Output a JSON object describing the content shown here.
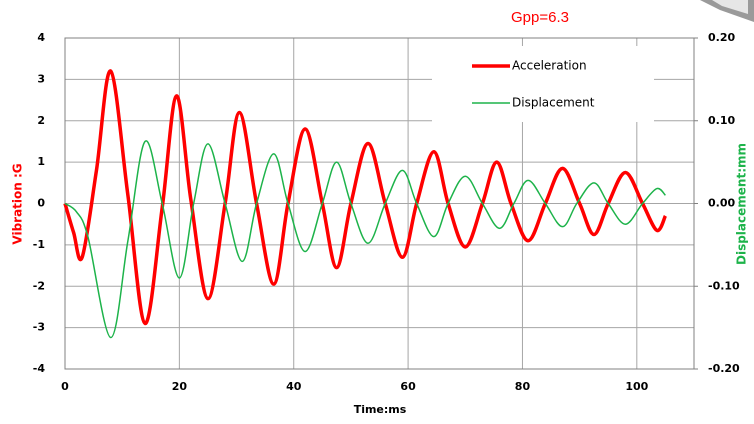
{
  "chart_data": {
    "type": "line",
    "annotation": "Gpp=6.3",
    "xlabel": "Time:ms",
    "ylabel": "Vibration :G",
    "y2label": "Displacement:mm",
    "xlim": [
      0,
      110
    ],
    "xticks": [
      0,
      20,
      40,
      60,
      80,
      100
    ],
    "ylim": [
      -4,
      4
    ],
    "yticks": [
      -4,
      -3,
      -2,
      -1,
      0,
      1,
      2,
      3,
      4
    ],
    "y2lim": [
      -0.2,
      0.2
    ],
    "y2ticks": [
      {
        "value": -0.2,
        "label": "-0.20"
      },
      {
        "value": -0.1,
        "label": "-0.10"
      },
      {
        "value": 0,
        "label": "0.00"
      },
      {
        "value": 0.1,
        "label": "0.10"
      },
      {
        "value": 0.2,
        "label": "0.20"
      }
    ],
    "grid": true,
    "legend": "upper right",
    "series": [
      {
        "name": "Acceleration",
        "color": "#ff0000",
        "x": [
          0,
          1.5,
          3,
          5.5,
          8,
          11,
          14,
          17,
          19.5,
          22,
          25,
          28,
          30.5,
          33.5,
          36.5,
          39,
          42,
          45,
          47.5,
          50,
          53,
          56,
          59,
          61.5,
          64.5,
          67,
          70,
          73,
          75.5,
          78,
          81,
          84,
          87,
          90,
          92.5,
          95,
          98,
          101,
          103.5,
          105
        ],
        "values": [
          0,
          -0.7,
          -1.3,
          0.8,
          3.2,
          0.2,
          -2.9,
          -0.1,
          2.6,
          0.1,
          -2.3,
          0,
          2.2,
          0,
          -1.95,
          0,
          1.8,
          0,
          -1.55,
          0,
          1.45,
          0,
          -1.3,
          0,
          1.25,
          0,
          -1.05,
          0,
          1.0,
          0,
          -0.9,
          0,
          0.85,
          0,
          -0.75,
          0,
          0.75,
          0,
          -0.65,
          -0.3
        ]
      },
      {
        "name": "Displacement",
        "color": "#1db34a",
        "axis": "y2",
        "x": [
          0,
          2,
          4,
          8,
          11,
          14,
          17,
          20,
          22.5,
          25,
          28,
          31,
          33.5,
          36.5,
          39,
          42,
          45,
          47.5,
          50,
          53,
          56,
          59,
          61.5,
          64.5,
          67,
          70,
          73,
          76,
          78.5,
          81,
          84,
          87,
          89.5,
          92.5,
          95,
          98,
          101,
          103.5,
          105
        ],
        "values": [
          0,
          -0.01,
          -0.04,
          -0.162,
          -0.045,
          0.075,
          0,
          -0.09,
          0,
          0.072,
          0,
          -0.07,
          0,
          0.06,
          0,
          -0.058,
          0,
          0.05,
          0,
          -0.048,
          0,
          0.04,
          0,
          -0.04,
          0,
          0.033,
          0,
          -0.03,
          0,
          0.028,
          0,
          -0.028,
          0,
          0.025,
          0,
          -0.025,
          0,
          0.018,
          0.01
        ]
      }
    ]
  }
}
